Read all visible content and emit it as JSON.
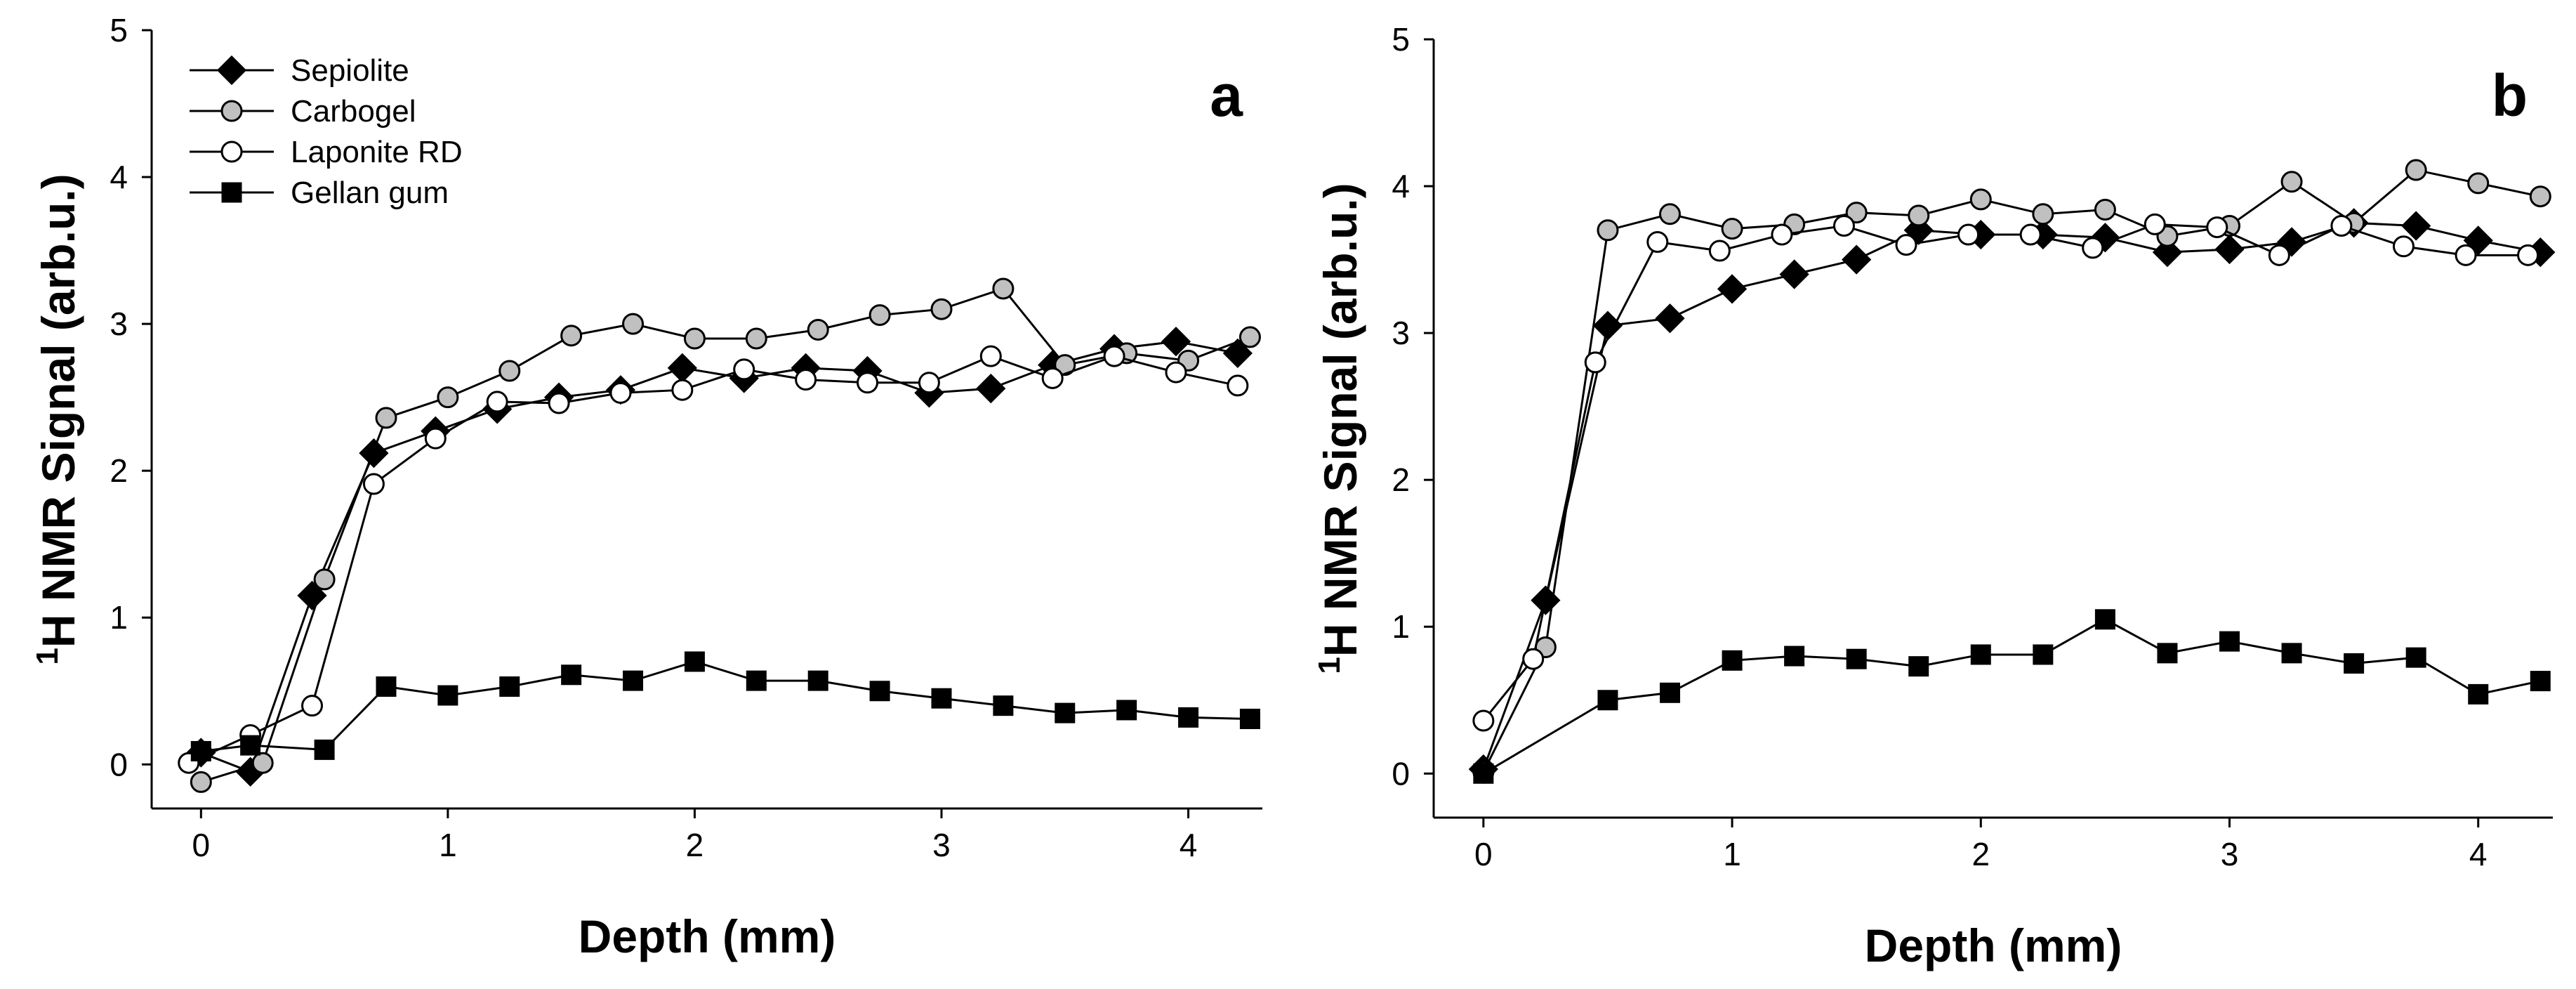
{
  "figure": {
    "title": ""
  },
  "chart_data": [
    {
      "panel": "a",
      "type": "line",
      "title": "",
      "xlabel": "Depth (mm)",
      "ylabel_sup": "1",
      "ylabel": "H NMR Signal (arb.u.)",
      "xlim": [
        -0.2,
        4.3
      ],
      "ylim": [
        -0.3,
        5
      ],
      "xticks": [
        0,
        1,
        2,
        3,
        4
      ],
      "yticks": [
        0,
        1,
        2,
        3,
        4,
        5
      ],
      "legend_position": "top-left",
      "series": [
        {
          "name": "Sepiolite",
          "marker": "diamond",
          "fill": "#000000",
          "x": [
            0,
            0.2,
            0.45,
            0.7,
            0.95,
            1.2,
            1.45,
            1.7,
            1.95,
            2.2,
            2.45,
            2.7,
            2.95,
            3.2,
            3.45,
            3.7,
            3.95,
            4.2
          ],
          "y": [
            0.08,
            -0.05,
            1.15,
            2.12,
            2.27,
            2.42,
            2.5,
            2.55,
            2.7,
            2.63,
            2.7,
            2.68,
            2.53,
            2.56,
            2.72,
            2.83,
            2.88,
            2.8
          ]
        },
        {
          "name": "Carbogel",
          "marker": "circle",
          "fill": "#c0c0c0",
          "x": [
            0,
            0.25,
            0.5,
            0.75,
            1.0,
            1.25,
            1.5,
            1.75,
            2.0,
            2.25,
            2.5,
            2.75,
            3.0,
            3.25,
            3.5,
            3.75,
            4.0,
            4.25
          ],
          "y": [
            -0.12,
            0.01,
            1.26,
            2.36,
            2.5,
            2.68,
            2.92,
            3.0,
            2.9,
            2.9,
            2.96,
            3.06,
            3.1,
            3.24,
            2.72,
            2.8,
            2.75,
            2.91
          ]
        },
        {
          "name": "Laponite RD",
          "marker": "circle",
          "fill": "#ffffff",
          "x": [
            -0.05,
            0.2,
            0.45,
            0.7,
            0.95,
            1.2,
            1.45,
            1.7,
            1.95,
            2.2,
            2.45,
            2.7,
            2.95,
            3.2,
            3.45,
            3.7,
            3.95,
            4.2
          ],
          "y": [
            0.01,
            0.2,
            0.4,
            1.91,
            2.22,
            2.47,
            2.46,
            2.53,
            2.55,
            2.69,
            2.62,
            2.6,
            2.6,
            2.78,
            2.63,
            2.78,
            2.67,
            2.58
          ]
        },
        {
          "name": "Gellan gum",
          "marker": "square",
          "fill": "#000000",
          "x": [
            0,
            0.2,
            0.5,
            0.75,
            1.0,
            1.25,
            1.5,
            1.75,
            2.0,
            2.25,
            2.5,
            2.75,
            3.0,
            3.25,
            3.5,
            3.75,
            4.0,
            4.25
          ],
          "y": [
            0.09,
            0.13,
            0.1,
            0.53,
            0.47,
            0.53,
            0.61,
            0.57,
            0.7,
            0.57,
            0.57,
            0.5,
            0.45,
            0.4,
            0.35,
            0.37,
            0.32,
            0.31
          ]
        }
      ]
    },
    {
      "panel": "b",
      "type": "line",
      "title": "",
      "xlabel": "Depth (mm)",
      "ylabel_sup": "1",
      "ylabel": "H NMR Signal (arb.u.)",
      "xlim": [
        -0.2,
        4.3
      ],
      "ylim": [
        -0.3,
        5
      ],
      "xticks": [
        0,
        1,
        2,
        3,
        4
      ],
      "yticks": [
        0,
        1,
        2,
        3,
        4,
        5
      ],
      "series": [
        {
          "name": "Sepiolite",
          "marker": "diamond",
          "fill": "#000000",
          "x": [
            0,
            0.25,
            0.5,
            0.75,
            1.0,
            1.25,
            1.5,
            1.75,
            2.0,
            2.25,
            2.5,
            2.75,
            3.0,
            3.25,
            3.5,
            3.75,
            4.0,
            4.25
          ],
          "y": [
            0.03,
            1.18,
            3.05,
            3.1,
            3.3,
            3.4,
            3.5,
            3.7,
            3.67,
            3.67,
            3.65,
            3.55,
            3.57,
            3.62,
            3.75,
            3.73,
            3.63,
            3.55
          ]
        },
        {
          "name": "Carbogel",
          "marker": "circle",
          "fill": "#c0c0c0",
          "x": [
            0,
            0.25,
            0.5,
            0.75,
            1.0,
            1.25,
            1.5,
            1.75,
            2.0,
            2.25,
            2.5,
            2.75,
            3.0,
            3.25,
            3.5,
            3.75,
            4.0,
            4.25
          ],
          "y": [
            0.01,
            0.86,
            3.7,
            3.81,
            3.71,
            3.74,
            3.82,
            3.8,
            3.91,
            3.81,
            3.84,
            3.66,
            3.73,
            4.03,
            3.75,
            4.11,
            4.02,
            3.93
          ]
        },
        {
          "name": "Laponite RD",
          "marker": "circle",
          "fill": "#ffffff",
          "x": [
            0,
            0.2,
            0.45,
            0.7,
            0.95,
            1.2,
            1.45,
            1.7,
            1.95,
            2.2,
            2.45,
            2.7,
            2.95,
            3.2,
            3.45,
            3.7,
            3.95,
            4.2
          ],
          "y": [
            0.36,
            0.78,
            2.8,
            3.62,
            3.56,
            3.67,
            3.73,
            3.6,
            3.67,
            3.67,
            3.58,
            3.74,
            3.72,
            3.53,
            3.73,
            3.59,
            3.53,
            3.53
          ]
        },
        {
          "name": "Gellan gum",
          "marker": "square",
          "fill": "#000000",
          "x": [
            0,
            0.5,
            0.75,
            1.0,
            1.25,
            1.5,
            1.75,
            2.0,
            2.25,
            2.5,
            2.75,
            3.0,
            3.25,
            3.5,
            3.75,
            4.0,
            4.25
          ],
          "y": [
            0.0,
            0.5,
            0.55,
            0.77,
            0.8,
            0.78,
            0.73,
            0.81,
            0.81,
            1.05,
            0.82,
            0.9,
            0.82,
            0.75,
            0.79,
            0.54,
            0.63
          ]
        }
      ]
    }
  ]
}
